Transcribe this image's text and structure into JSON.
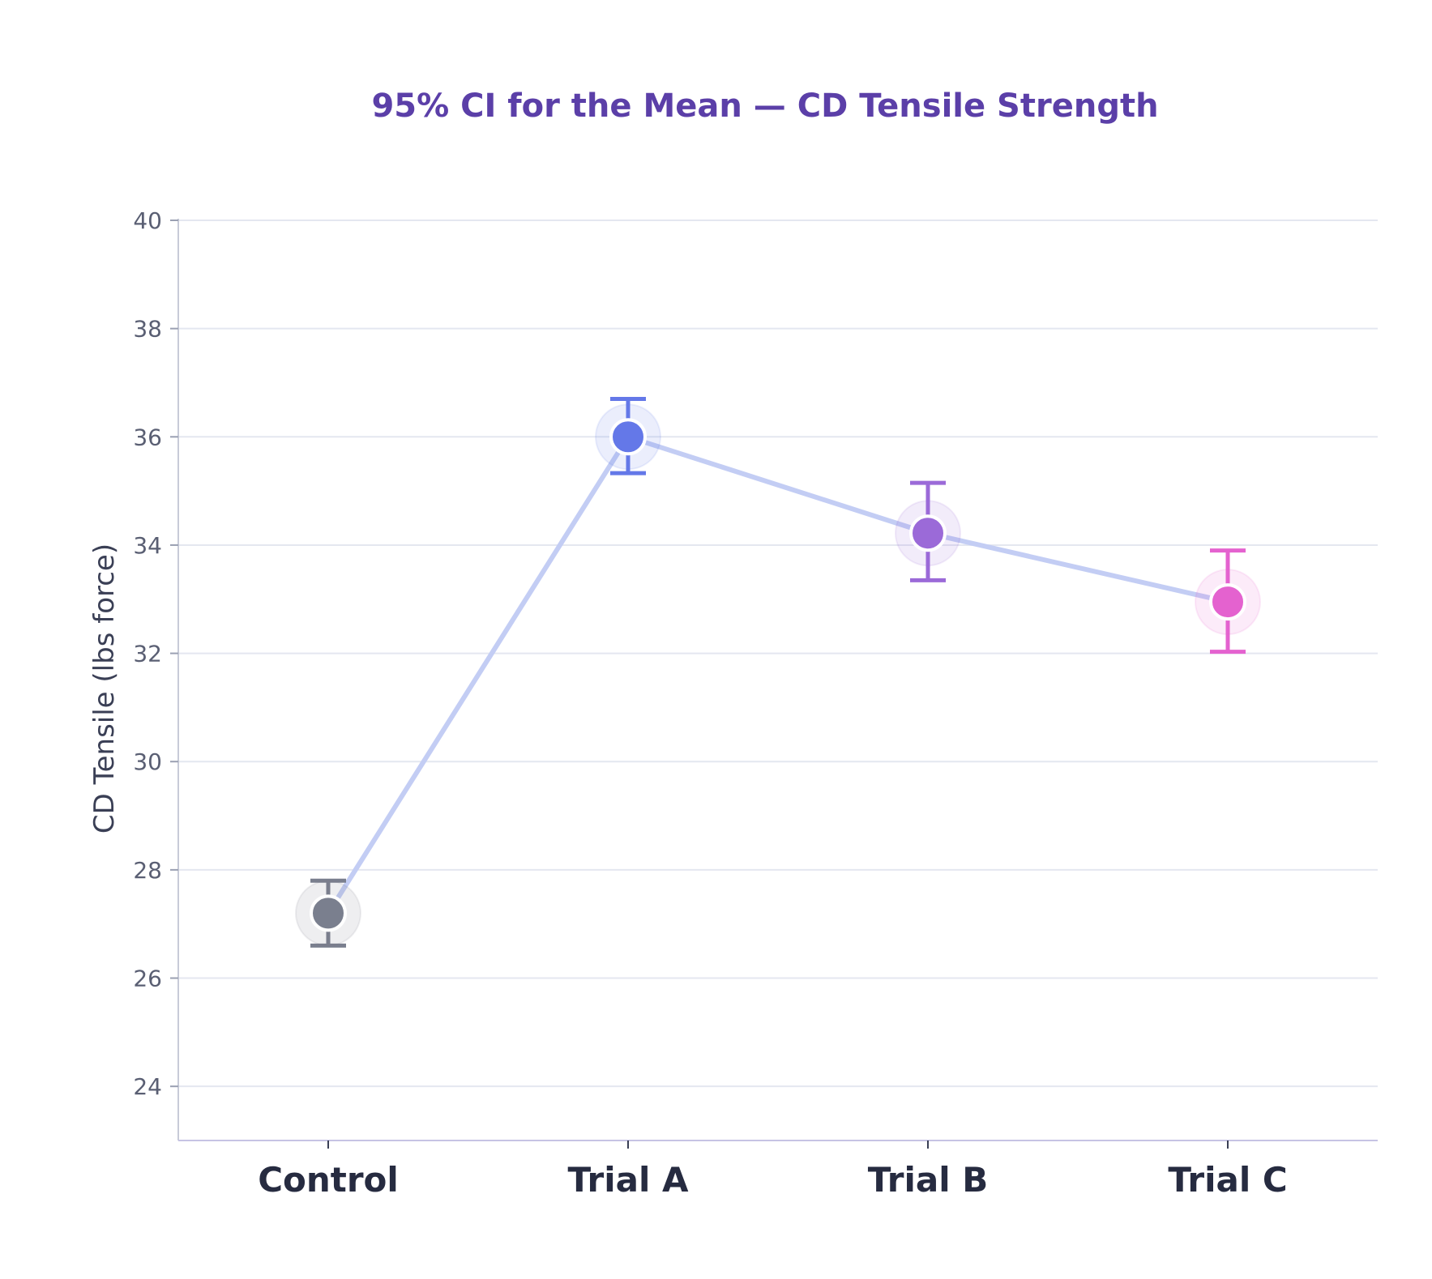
{
  "chart_data": {
    "type": "scatter",
    "title": "95% CI for the Mean — CD Tensile Strength",
    "xlabel": "",
    "ylabel": "CD Tensile (lbs force)",
    "categories": [
      "Control",
      "Trial A",
      "Trial B",
      "Trial C"
    ],
    "points": [
      {
        "category": "Control",
        "mean": 27.2,
        "lower": 26.6,
        "upper": 27.8,
        "color": "#7a7f8e"
      },
      {
        "category": "Trial A",
        "mean": 36.0,
        "lower": 35.33,
        "upper": 36.7,
        "color": "#6478e8"
      },
      {
        "category": "Trial B",
        "mean": 34.22,
        "lower": 33.35,
        "upper": 35.15,
        "color": "#9b6ad8"
      },
      {
        "category": "Trial C",
        "mean": 32.95,
        "lower": 32.03,
        "upper": 33.9,
        "color": "#e462cf"
      }
    ],
    "connector_color": "#c3cdf4",
    "ylim": [
      23,
      40
    ],
    "yticks": [
      24,
      26,
      28,
      30,
      32,
      34,
      36,
      38,
      40
    ],
    "grid": true,
    "legend": "none"
  }
}
